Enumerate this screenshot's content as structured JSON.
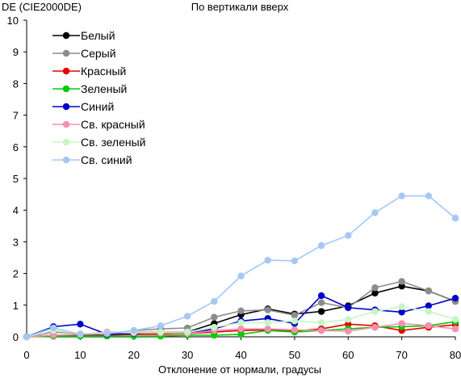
{
  "chart_data": {
    "type": "line",
    "title": "По вертикали вверх",
    "ylabel": "DE (CIE2000DE)",
    "xlabel": "Отклонение от нормали, градусы",
    "xlim": [
      0,
      80
    ],
    "ylim": [
      0,
      10
    ],
    "xticks": [
      "0",
      "10",
      "20",
      "30",
      "40",
      "50",
      "60",
      "70",
      "80"
    ],
    "yticks": [
      "0",
      "1",
      "2",
      "3",
      "4",
      "5",
      "6",
      "7",
      "8",
      "9",
      "10"
    ],
    "grid": false,
    "legend_position": "top-left",
    "x": [
      0,
      5,
      10,
      15,
      20,
      25,
      30,
      35,
      40,
      45,
      50,
      55,
      60,
      65,
      70,
      75,
      80
    ],
    "series": [
      {
        "name": "Белый",
        "color": "#000000",
        "values": [
          0,
          0.05,
          0.05,
          0.1,
          0.15,
          0.15,
          0.15,
          0.42,
          0.7,
          0.88,
          0.72,
          0.8,
          0.98,
          1.38,
          1.6,
          1.45,
          1.12
        ]
      },
      {
        "name": "Серый",
        "color": "#8c8c8c",
        "values": [
          0,
          0.15,
          0.1,
          0.1,
          0.2,
          0.25,
          0.28,
          0.62,
          0.82,
          0.85,
          0.68,
          1.08,
          0.92,
          1.55,
          1.75,
          1.45,
          1.12
        ]
      },
      {
        "name": "Красный",
        "color": "#e60000",
        "values": [
          0,
          0.02,
          0.04,
          0.05,
          0.08,
          0.08,
          0.1,
          0.15,
          0.2,
          0.22,
          0.18,
          0.25,
          0.4,
          0.35,
          0.2,
          0.3,
          0.38
        ]
      },
      {
        "name": "Зеленый",
        "color": "#00cc00",
        "values": [
          0,
          0.02,
          0.02,
          0.02,
          0.02,
          0.02,
          0.05,
          0.05,
          0.08,
          0.2,
          0.15,
          0.2,
          0.25,
          0.3,
          0.32,
          0.35,
          0.48
        ]
      },
      {
        "name": "Синий",
        "color": "#0000cc",
        "values": [
          0,
          0.32,
          0.4,
          0.08,
          0.1,
          0.15,
          0.1,
          0.25,
          0.5,
          0.58,
          0.42,
          1.3,
          0.92,
          0.85,
          0.78,
          0.98,
          1.22
        ]
      },
      {
        "name": "Св. красный",
        "color": "#f58fb0",
        "values": [
          0,
          0.05,
          0.08,
          0.15,
          0.12,
          0.12,
          0.1,
          0.2,
          0.25,
          0.25,
          0.22,
          0.2,
          0.18,
          0.3,
          0.42,
          0.35,
          0.25
        ]
      },
      {
        "name": "Св. зеленый",
        "color": "#c6f5c6",
        "values": [
          0,
          0.2,
          0.1,
          0.12,
          0.15,
          0.15,
          0.15,
          0.3,
          0.45,
          0.45,
          0.5,
          0.45,
          0.55,
          0.8,
          0.95,
          0.8,
          0.55
        ]
      },
      {
        "name": "Св. синий",
        "color": "#a5c8f5",
        "values": [
          0,
          0.28,
          0.08,
          0.1,
          0.2,
          0.35,
          0.65,
          1.12,
          1.92,
          2.42,
          2.4,
          2.88,
          3.2,
          3.92,
          4.45,
          4.45,
          3.75
        ]
      }
    ]
  }
}
